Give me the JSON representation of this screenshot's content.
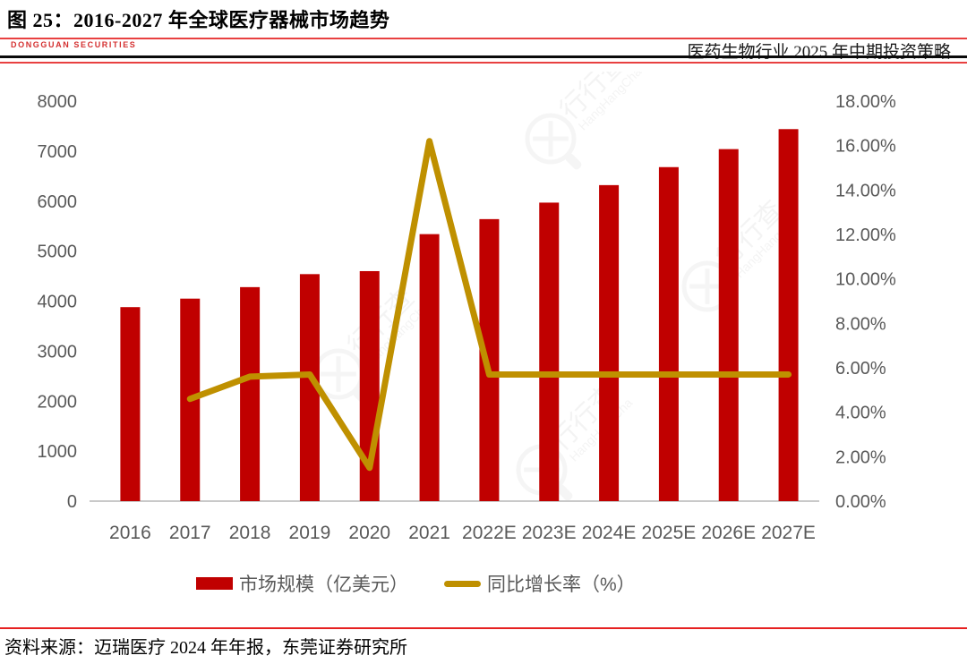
{
  "header": {
    "figure_title": "图 25：2016-2027 年全球医疗器械市场趋势",
    "logo_text": "DONGGUAN  SECURITIES",
    "report_title": "医药生物行业 2025 年中期投资策略"
  },
  "chart_data": {
    "type": "bar",
    "combo": "bar+line",
    "title": "2016-2027 年全球医疗器械市场趋势",
    "categories": [
      "2016",
      "2017",
      "2018",
      "2019",
      "2020",
      "2021",
      "2022E",
      "2023E",
      "2024E",
      "2025E",
      "2026E",
      "2027E"
    ],
    "series": [
      {
        "name": "市场规模（亿美元）",
        "type": "bar",
        "axis": "left",
        "color": "#C00000",
        "values": [
          3880,
          4050,
          4280,
          4540,
          4600,
          5340,
          5640,
          5970,
          6320,
          6680,
          7040,
          7440
        ]
      },
      {
        "name": "同比增长率（%）",
        "type": "line",
        "axis": "right",
        "color": "#BF9000",
        "values": [
          null,
          4.6,
          5.6,
          5.7,
          1.5,
          16.2,
          5.7,
          5.7,
          5.7,
          5.7,
          5.7,
          5.7
        ]
      }
    ],
    "left_axis": {
      "min": 0,
      "max": 8000,
      "step": 1000,
      "tick_labels": [
        "0",
        "1000",
        "2000",
        "3000",
        "4000",
        "5000",
        "6000",
        "7000",
        "8000"
      ]
    },
    "right_axis": {
      "min": 0,
      "max": 18,
      "step": 2,
      "tick_labels": [
        "0.00%",
        "2.00%",
        "4.00%",
        "6.00%",
        "8.00%",
        "10.00%",
        "12.00%",
        "14.00%",
        "16.00%",
        "18.00%"
      ]
    },
    "grid": false,
    "legend_position": "bottom",
    "axis_label_color": "#595959",
    "axis_line_color": "#C9C9C9"
  },
  "footer": {
    "source_text": "资料来源：迈瑞医疗 2024 年年报，东莞证券研究所"
  },
  "watermark": {
    "text": "行行查",
    "subtext": "HangHangCha"
  }
}
